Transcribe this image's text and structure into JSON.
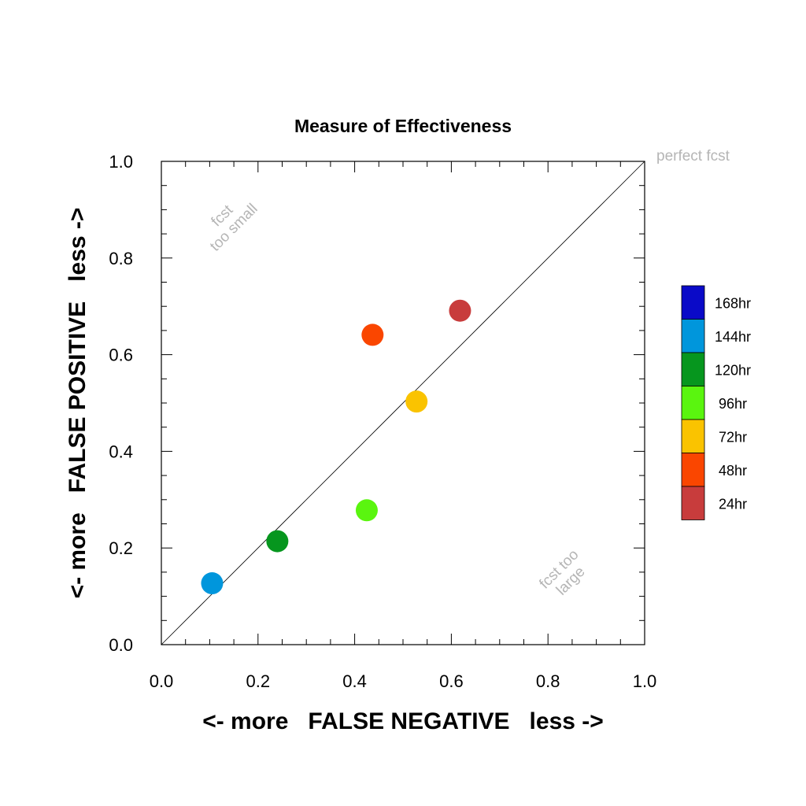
{
  "chart_data": {
    "type": "scatter",
    "title": "Measure of Effectiveness",
    "xlabel": "<- more   FALSE NEGATIVE   less ->",
    "ylabel": "<- more   FALSE POSITIVE   less ->",
    "xlim": [
      0.0,
      1.0
    ],
    "ylim": [
      0.0,
      1.0
    ],
    "x_tick_labels": [
      "0.0",
      "0.2",
      "0.4",
      "0.6",
      "0.8",
      "1.0"
    ],
    "y_tick_labels": [
      "0.0",
      "0.2",
      "0.4",
      "0.6",
      "0.8",
      "1.0"
    ],
    "grid": false,
    "diagonal_line": true,
    "annotations": {
      "top_left": [
        "fcst",
        "too small"
      ],
      "bottom_right": [
        "fcst too",
        "large"
      ],
      "corner": "perfect fcst"
    },
    "legend_position": "right",
    "series": [
      {
        "name": "168hr",
        "color": "#0a0ac8",
        "x": null,
        "y": null
      },
      {
        "name": "144hr",
        "color": "#0096dc",
        "x": 0.105,
        "y": 0.127
      },
      {
        "name": "120hr",
        "color": "#06961e",
        "x": 0.24,
        "y": 0.214
      },
      {
        "name": "96hr",
        "color": "#5af50f",
        "x": 0.425,
        "y": 0.278
      },
      {
        "name": "72hr",
        "color": "#fac300",
        "x": 0.528,
        "y": 0.503
      },
      {
        "name": "48hr",
        "color": "#fa4600",
        "x": 0.437,
        "y": 0.641
      },
      {
        "name": "24hr",
        "color": "#c83c3c",
        "x": 0.618,
        "y": 0.691
      }
    ]
  }
}
